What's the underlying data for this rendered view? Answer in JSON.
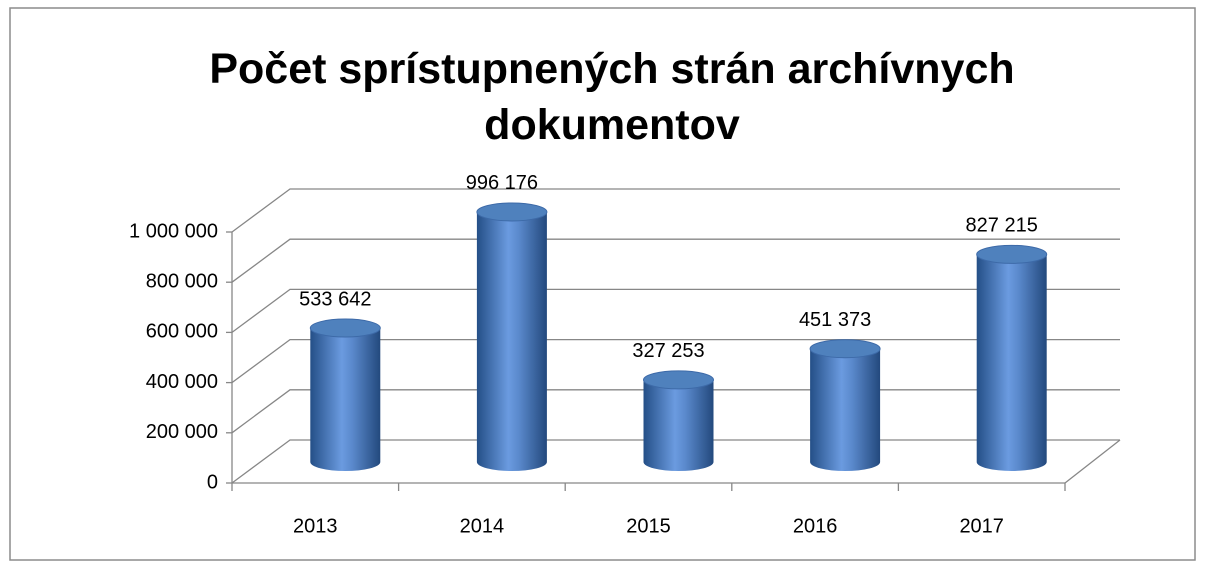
{
  "chart_data": {
    "type": "bar3d_cylinder",
    "title": "Počet sprístupnených strán archívnych dokumentov",
    "categories": [
      "2013",
      "2014",
      "2015",
      "2016",
      "2017"
    ],
    "values": [
      533642,
      996176,
      327253,
      451373,
      827215
    ],
    "value_labels": [
      "533 642",
      "996 176",
      "327 253",
      "451 373",
      "827 215"
    ],
    "color": "#4f81bd",
    "ylim": [
      0,
      1000000
    ],
    "yticks": [
      0,
      {
        "value": 200000,
        "label": "200 000"
      },
      {
        "value": 400000,
        "label": "400 000"
      },
      {
        "value": 600000,
        "label": "600 000"
      },
      {
        "value": 800000,
        "label": "800 000"
      },
      {
        "value": 1000000,
        "label": "1 000 000"
      }
    ],
    "grid": true
  }
}
